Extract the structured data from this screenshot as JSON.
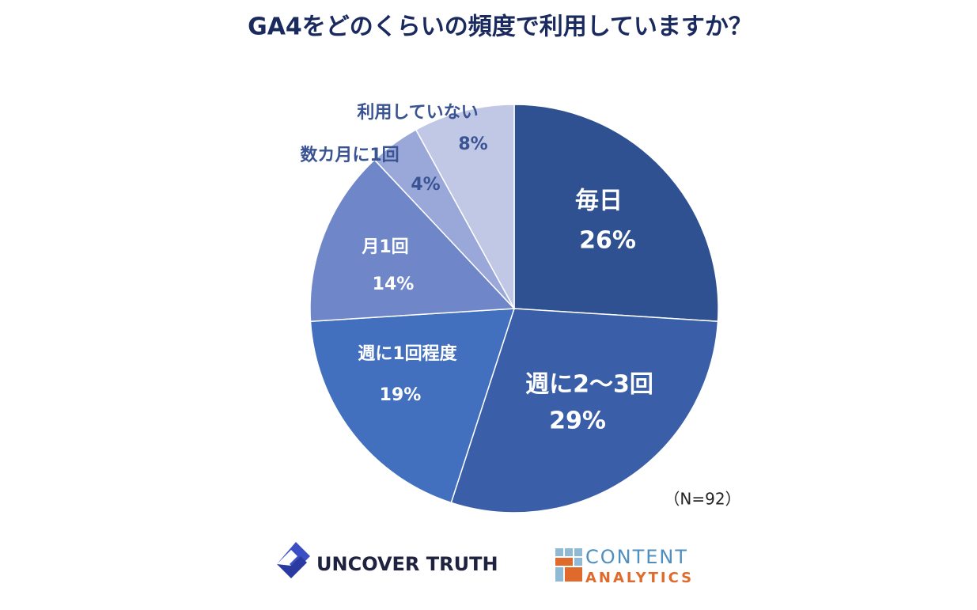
{
  "chart_data": {
    "type": "pie",
    "title": "GA4をどのくらいの頻度で利用していますか？",
    "categories": [
      "毎日",
      "週に2〜3回",
      "週に1回程度",
      "月1回",
      "数カ月に1回",
      "利用していない"
    ],
    "values": [
      26,
      29,
      19,
      14,
      4,
      8
    ],
    "value_labels": [
      "26%",
      "29%",
      "19%",
      "14%",
      "4%",
      "8%"
    ],
    "colors": [
      "#2f5191",
      "#3a5fa8",
      "#4270bf",
      "#6f86c9",
      "#9aa8d9",
      "#c0c8e6"
    ],
    "note": "（N=92）"
  },
  "footer": {
    "logos": [
      "UNCOVER TRUTH",
      "CONTENT",
      "ANALYTICS"
    ]
  }
}
